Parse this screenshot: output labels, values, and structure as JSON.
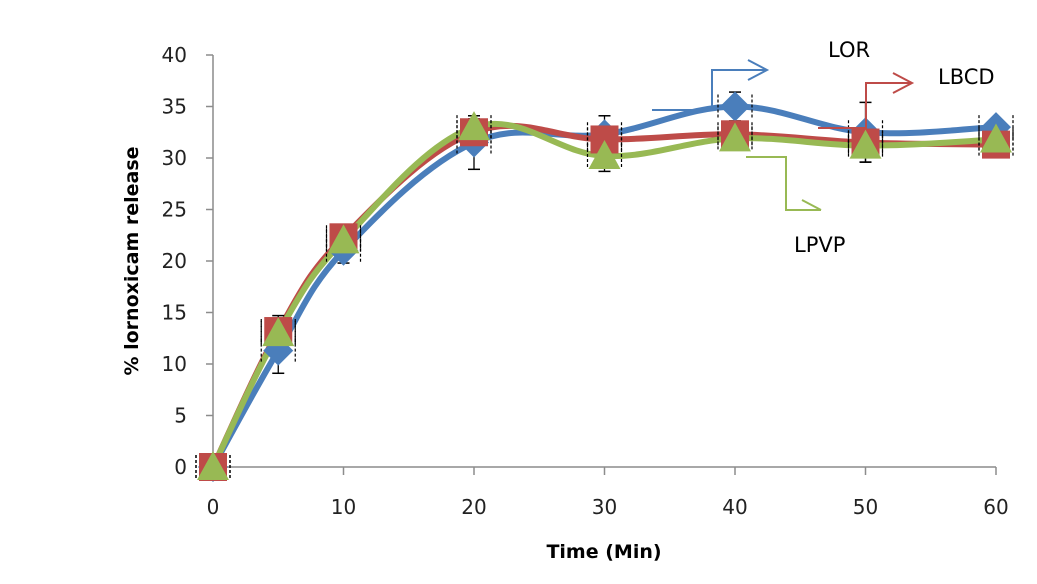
{
  "chart_data": {
    "type": "line",
    "title": "",
    "xlabel": "Time (Min)",
    "ylabel": "% lornoxicam release",
    "xlim": [
      0,
      60
    ],
    "ylim": [
      0,
      40
    ],
    "x_ticks": [
      0,
      10,
      20,
      30,
      40,
      50,
      60
    ],
    "y_ticks": [
      0,
      5,
      10,
      15,
      20,
      25,
      30,
      35,
      40
    ],
    "x": [
      0,
      5,
      10,
      20,
      30,
      40,
      50,
      60
    ],
    "grid": false,
    "legend": "callout-labels",
    "series": [
      {
        "name": "LOR",
        "color": "#4a7ebb",
        "marker": "diamond",
        "values": [
          0,
          11.3,
          21.0,
          31.5,
          32.3,
          35.0,
          32.5,
          33.0
        ],
        "errors": [
          0.3,
          2.2,
          1.2,
          2.6,
          1.8,
          1.4,
          2.9,
          0.4
        ]
      },
      {
        "name": "LBCD",
        "color": "#be4b48",
        "marker": "square",
        "values": [
          0,
          13.2,
          22.3,
          32.5,
          31.8,
          32.3,
          31.5,
          31.3
        ],
        "errors": [
          0.3,
          1.5,
          1.2,
          1.3,
          1.0,
          0.5,
          1.2,
          1.0
        ]
      },
      {
        "name": "LPVP",
        "color": "#98b954",
        "marker": "triangle",
        "values": [
          0,
          13.0,
          22.0,
          33.0,
          30.2,
          31.9,
          31.2,
          31.8
        ],
        "errors": [
          0.3,
          1.0,
          1.0,
          0.6,
          1.5,
          0.5,
          1.6,
          0.5
        ]
      }
    ]
  }
}
